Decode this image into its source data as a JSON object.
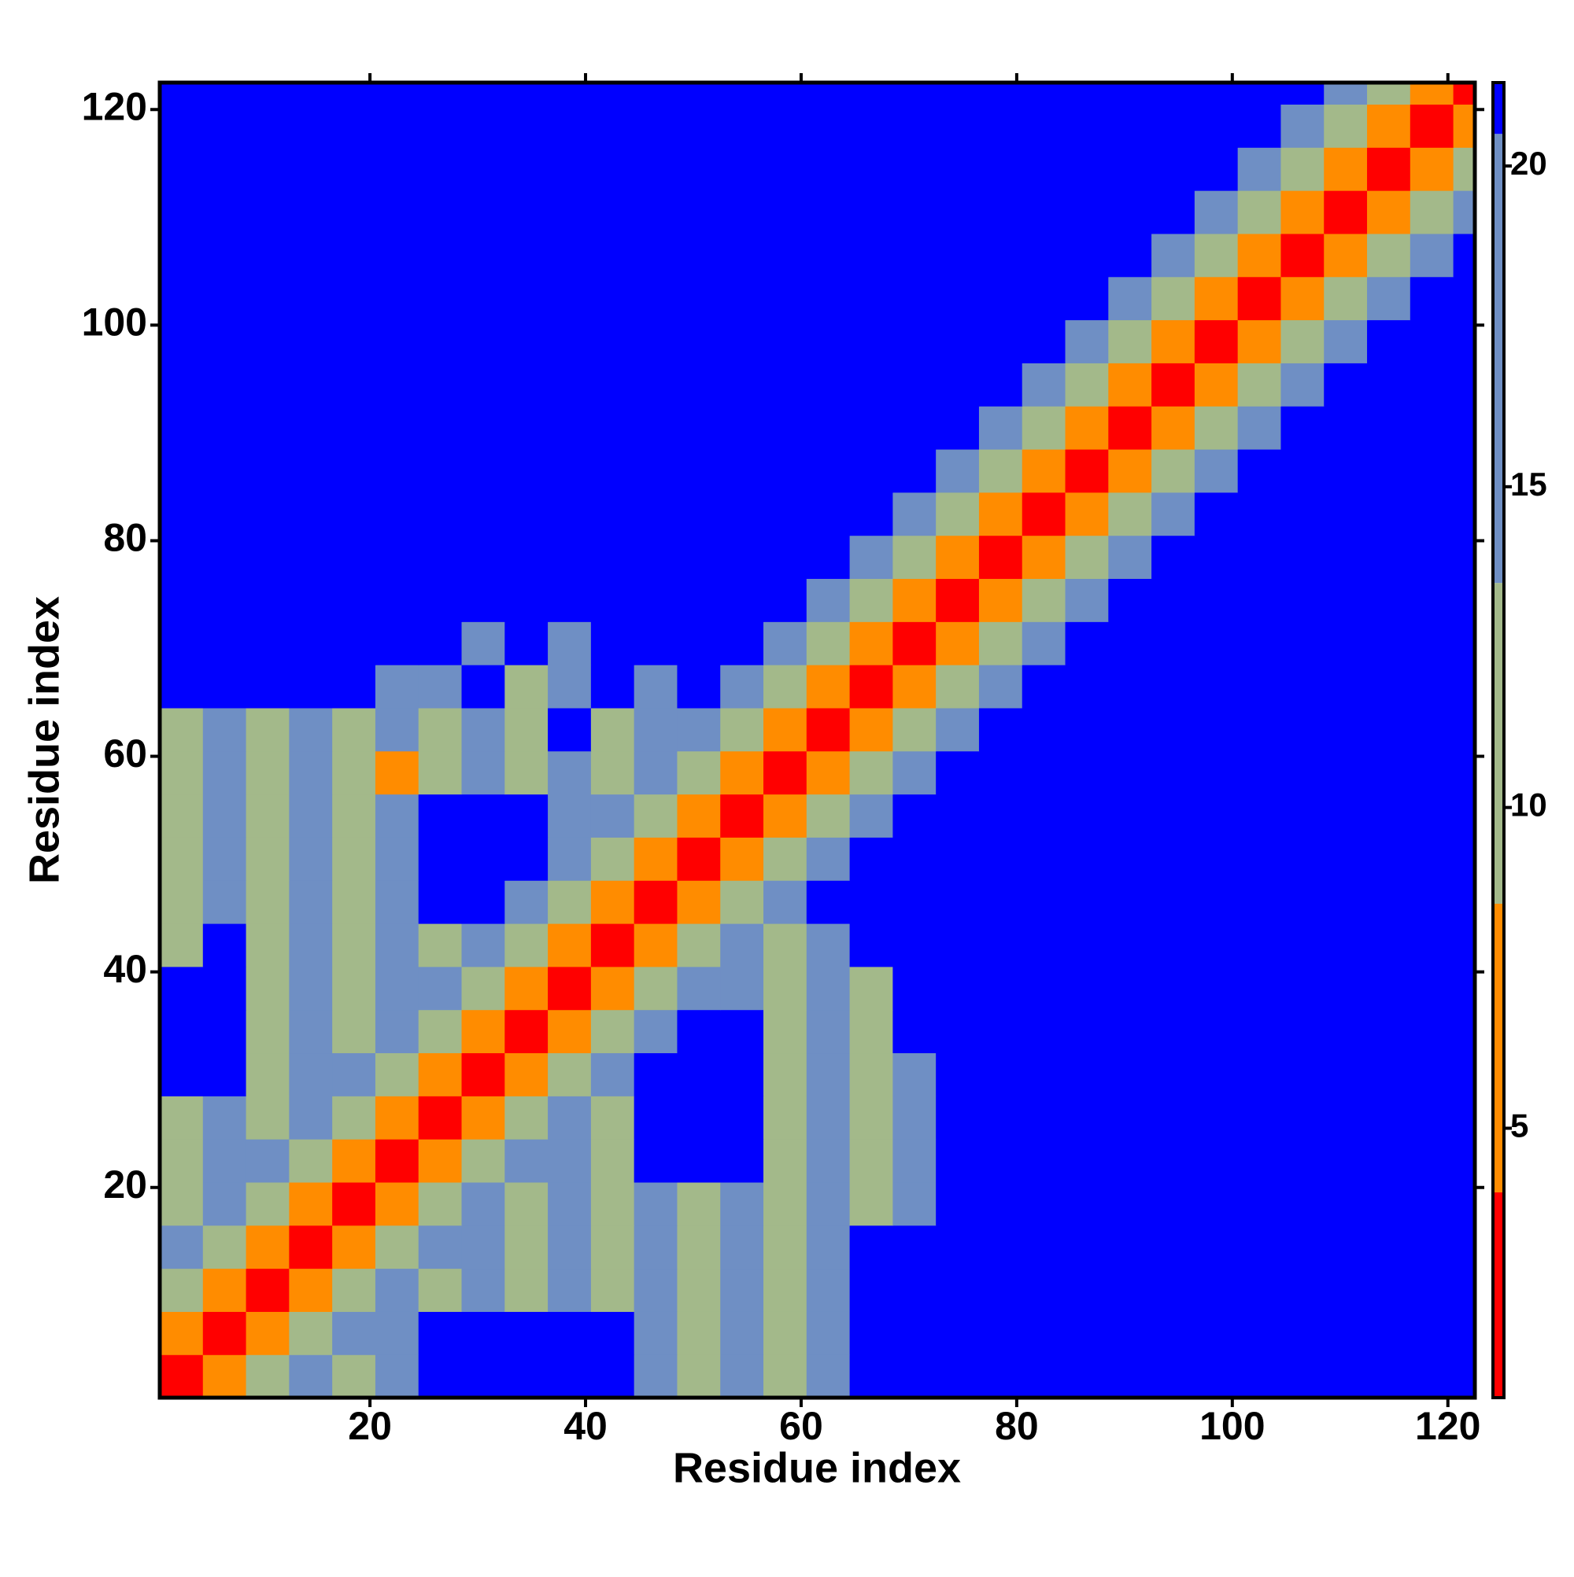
{
  "chart_data": {
    "type": "heatmap",
    "xlabel": "Residue index",
    "ylabel": "Residue index",
    "xlim": [
      0.5,
      122.5
    ],
    "ylim": [
      0.5,
      122.5
    ],
    "xticks": [
      20,
      40,
      60,
      80,
      100,
      120
    ],
    "yticks": [
      20,
      40,
      60,
      80,
      100,
      120
    ],
    "x_edges": [
      0.5,
      4.5,
      8.5,
      12.5,
      16.5,
      20.5,
      24.5,
      28.5,
      32.5,
      36.5,
      40.5,
      44.5,
      48.5,
      52.5,
      56.5,
      60.5,
      64.5,
      68.5,
      72.5,
      76.5,
      80.5,
      84.5,
      88.5,
      92.5,
      96.5,
      100.5,
      104.5,
      108.5,
      112.5,
      116.5,
      120.5,
      122.5
    ],
    "y_edges": [
      0.5,
      4.5,
      8.5,
      12.5,
      16.5,
      20.5,
      24.5,
      28.5,
      32.5,
      36.5,
      40.5,
      44.5,
      48.5,
      52.5,
      56.5,
      60.5,
      64.5,
      68.5,
      72.5,
      76.5,
      80.5,
      84.5,
      88.5,
      92.5,
      96.5,
      100.5,
      104.5,
      108.5,
      112.5,
      116.5,
      120.5,
      122.5
    ],
    "values": [
      [
        2,
        6,
        10,
        14,
        12,
        15,
        21,
        21,
        21,
        21,
        21,
        17,
        12,
        15,
        10,
        17,
        21,
        21,
        21,
        21,
        21,
        21,
        21,
        21,
        21,
        21,
        21,
        21,
        21,
        21,
        21
      ],
      [
        6,
        2,
        6,
        10,
        14,
        17,
        21,
        21,
        21,
        21,
        21,
        15,
        10,
        17,
        12,
        15,
        21,
        21,
        21,
        21,
        21,
        21,
        21,
        21,
        21,
        21,
        21,
        21,
        21,
        21,
        21
      ],
      [
        10,
        6,
        2,
        6,
        10,
        14,
        10,
        17,
        12,
        15,
        10,
        17,
        12,
        15,
        10,
        17,
        21,
        21,
        21,
        21,
        21,
        21,
        21,
        21,
        21,
        21,
        21,
        21,
        21,
        21,
        21
      ],
      [
        14,
        10,
        6,
        2,
        6,
        10,
        14,
        15,
        10,
        17,
        12,
        15,
        10,
        17,
        12,
        15,
        21,
        21,
        21,
        21,
        21,
        21,
        21,
        21,
        21,
        21,
        21,
        21,
        21,
        21,
        21
      ],
      [
        12,
        14,
        10,
        6,
        2,
        6,
        10,
        14,
        12,
        15,
        10,
        17,
        12,
        15,
        10,
        17,
        12,
        15,
        21,
        21,
        21,
        21,
        21,
        21,
        21,
        21,
        21,
        21,
        21,
        21,
        21
      ],
      [
        10,
        17,
        14,
        10,
        6,
        2,
        6,
        10,
        14,
        17,
        12,
        21,
        21,
        21,
        12,
        15,
        10,
        17,
        21,
        21,
        21,
        21,
        21,
        21,
        21,
        21,
        21,
        21,
        21,
        21,
        21
      ],
      [
        12,
        15,
        10,
        14,
        10,
        6,
        2,
        6,
        10,
        14,
        10,
        21,
        21,
        21,
        10,
        17,
        12,
        15,
        21,
        21,
        21,
        21,
        21,
        21,
        21,
        21,
        21,
        21,
        21,
        21,
        21
      ],
      [
        21,
        21,
        12,
        15,
        14,
        10,
        6,
        2,
        6,
        10,
        14,
        21,
        21,
        21,
        12,
        15,
        10,
        17,
        21,
        21,
        21,
        21,
        21,
        21,
        21,
        21,
        21,
        21,
        21,
        21,
        21
      ],
      [
        21,
        21,
        10,
        17,
        12,
        14,
        10,
        6,
        2,
        6,
        10,
        14,
        21,
        21,
        10,
        17,
        12,
        21,
        21,
        21,
        21,
        21,
        21,
        21,
        21,
        21,
        21,
        21,
        21,
        21,
        21
      ],
      [
        21,
        21,
        12,
        15,
        10,
        17,
        14,
        10,
        6,
        2,
        6,
        10,
        14,
        17,
        12,
        15,
        10,
        21,
        21,
        21,
        21,
        21,
        21,
        21,
        21,
        21,
        21,
        21,
        21,
        21,
        21
      ],
      [
        12,
        21,
        10,
        17,
        12,
        15,
        10,
        14,
        10,
        6,
        2,
        6,
        10,
        14,
        10,
        17,
        21,
        21,
        21,
        21,
        21,
        21,
        21,
        21,
        21,
        21,
        21,
        21,
        21,
        21,
        21
      ],
      [
        10,
        17,
        12,
        15,
        10,
        17,
        21,
        21,
        14,
        10,
        6,
        2,
        6,
        10,
        14,
        21,
        21,
        21,
        21,
        21,
        21,
        21,
        21,
        21,
        21,
        21,
        21,
        21,
        21,
        21,
        21
      ],
      [
        12,
        15,
        10,
        17,
        12,
        15,
        21,
        21,
        21,
        14,
        10,
        6,
        2,
        6,
        10,
        14,
        21,
        21,
        21,
        21,
        21,
        21,
        21,
        21,
        21,
        21,
        21,
        21,
        21,
        21,
        21
      ],
      [
        10,
        17,
        12,
        15,
        10,
        17,
        21,
        21,
        21,
        17,
        14,
        10,
        6,
        2,
        6,
        10,
        14,
        21,
        21,
        21,
        21,
        21,
        21,
        21,
        21,
        21,
        21,
        21,
        21,
        21,
        21
      ],
      [
        12,
        15,
        10,
        17,
        12,
        7,
        10,
        17,
        12,
        15,
        10,
        14,
        10,
        6,
        2,
        6,
        10,
        14,
        21,
        21,
        21,
        21,
        21,
        21,
        21,
        21,
        21,
        21,
        21,
        21,
        21
      ],
      [
        10,
        17,
        12,
        15,
        10,
        17,
        12,
        15,
        10,
        21,
        12,
        15,
        14,
        10,
        6,
        2,
        6,
        10,
        14,
        21,
        21,
        21,
        21,
        21,
        21,
        21,
        21,
        21,
        21,
        21,
        21
      ],
      [
        21,
        21,
        21,
        21,
        21,
        15,
        17,
        21,
        12,
        17,
        21,
        17,
        21,
        14,
        10,
        6,
        2,
        6,
        10,
        14,
        21,
        21,
        21,
        21,
        21,
        21,
        21,
        21,
        21,
        21,
        21
      ],
      [
        21,
        21,
        21,
        21,
        21,
        21,
        21,
        15,
        21,
        17,
        21,
        21,
        21,
        21,
        14,
        10,
        6,
        2,
        6,
        10,
        14,
        21,
        21,
        21,
        21,
        21,
        21,
        21,
        21,
        21,
        21
      ],
      [
        21,
        21,
        21,
        21,
        21,
        21,
        21,
        21,
        21,
        21,
        21,
        21,
        21,
        21,
        21,
        14,
        10,
        6,
        2,
        6,
        10,
        14,
        21,
        21,
        21,
        21,
        21,
        21,
        21,
        21,
        21
      ],
      [
        21,
        21,
        21,
        21,
        21,
        21,
        21,
        21,
        21,
        21,
        21,
        21,
        21,
        21,
        21,
        21,
        14,
        10,
        6,
        2,
        6,
        10,
        14,
        21,
        21,
        21,
        21,
        21,
        21,
        21,
        21
      ],
      [
        21,
        21,
        21,
        21,
        21,
        21,
        21,
        21,
        21,
        21,
        21,
        21,
        21,
        21,
        21,
        21,
        21,
        14,
        10,
        6,
        2,
        6,
        10,
        14,
        21,
        21,
        21,
        21,
        21,
        21,
        21
      ],
      [
        21,
        21,
        21,
        21,
        21,
        21,
        21,
        21,
        21,
        21,
        21,
        21,
        21,
        21,
        21,
        21,
        21,
        21,
        14,
        10,
        6,
        2,
        6,
        10,
        14,
        21,
        21,
        21,
        21,
        21,
        21
      ],
      [
        21,
        21,
        21,
        21,
        21,
        21,
        21,
        21,
        21,
        21,
        21,
        21,
        21,
        21,
        21,
        21,
        21,
        21,
        21,
        14,
        10,
        6,
        2,
        6,
        10,
        14,
        21,
        21,
        21,
        21,
        21
      ],
      [
        21,
        21,
        21,
        21,
        21,
        21,
        21,
        21,
        21,
        21,
        21,
        21,
        21,
        21,
        21,
        21,
        21,
        21,
        21,
        21,
        14,
        10,
        6,
        2,
        6,
        10,
        14,
        21,
        21,
        21,
        21
      ],
      [
        21,
        21,
        21,
        21,
        21,
        21,
        21,
        21,
        21,
        21,
        21,
        21,
        21,
        21,
        21,
        21,
        21,
        21,
        21,
        21,
        21,
        14,
        10,
        6,
        2,
        6,
        10,
        14,
        21,
        21,
        21
      ],
      [
        21,
        21,
        21,
        21,
        21,
        21,
        21,
        21,
        21,
        21,
        21,
        21,
        21,
        21,
        21,
        21,
        21,
        21,
        21,
        21,
        21,
        21,
        14,
        10,
        6,
        2,
        6,
        10,
        14,
        21,
        21
      ],
      [
        21,
        21,
        21,
        21,
        21,
        21,
        21,
        21,
        21,
        21,
        21,
        21,
        21,
        21,
        21,
        21,
        21,
        21,
        21,
        21,
        21,
        21,
        21,
        14,
        10,
        6,
        2,
        6,
        10,
        14,
        21
      ],
      [
        21,
        21,
        21,
        21,
        21,
        21,
        21,
        21,
        21,
        21,
        21,
        21,
        21,
        21,
        21,
        21,
        21,
        21,
        21,
        21,
        21,
        21,
        21,
        21,
        14,
        10,
        6,
        2,
        6,
        10,
        14
      ],
      [
        21,
        21,
        21,
        21,
        21,
        21,
        21,
        21,
        21,
        21,
        21,
        21,
        21,
        21,
        21,
        21,
        21,
        21,
        21,
        21,
        21,
        21,
        21,
        21,
        21,
        14,
        10,
        6,
        2,
        6,
        10
      ],
      [
        21,
        21,
        21,
        21,
        21,
        21,
        21,
        21,
        21,
        21,
        21,
        21,
        21,
        21,
        21,
        21,
        21,
        21,
        21,
        21,
        21,
        21,
        21,
        21,
        21,
        21,
        14,
        10,
        6,
        2,
        6
      ],
      [
        21,
        21,
        21,
        21,
        21,
        21,
        21,
        21,
        21,
        21,
        21,
        21,
        21,
        21,
        21,
        21,
        21,
        21,
        21,
        21,
        21,
        21,
        21,
        21,
        21,
        21,
        21,
        14,
        10,
        6,
        2
      ]
    ],
    "colorbar": {
      "zlim": [
        0.8,
        21.3
      ],
      "zticks": [
        5,
        10,
        15,
        20
      ],
      "edges": [
        0.8,
        4,
        8.5,
        13.5,
        20.5,
        21.3
      ],
      "colors": [
        "#ff0000",
        "#ff8c00",
        "#a3b98a",
        "#6f8fc4",
        "#0000ff"
      ]
    }
  }
}
